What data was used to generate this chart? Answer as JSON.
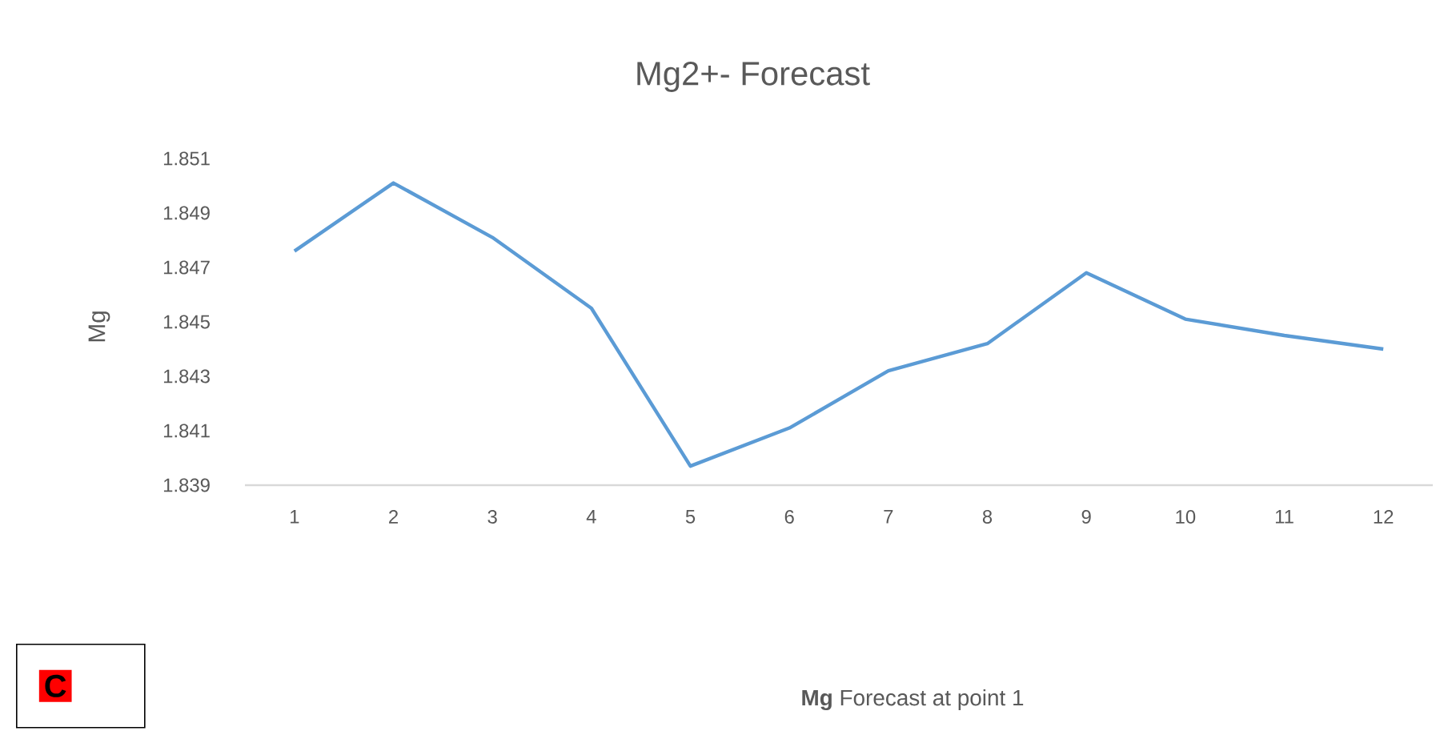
{
  "chart_data": {
    "type": "line",
    "title": "Mg2+- Forecast",
    "ylabel": "Mg",
    "categories": [
      "1",
      "2",
      "3",
      "4",
      "5",
      "6",
      "7",
      "8",
      "9",
      "10",
      "11",
      "12"
    ],
    "series": [
      {
        "color": "#5b9bd5",
        "values": [
          1.8476,
          1.8501,
          1.8481,
          1.8455,
          1.8397,
          1.8411,
          1.8432,
          1.8442,
          1.8468,
          1.8451,
          1.8445,
          1.844
        ]
      }
    ],
    "ylim": [
      1.839,
      1.851
    ],
    "yticks": [
      1.839,
      1.841,
      1.843,
      1.845,
      1.847,
      1.849,
      1.851
    ],
    "grid": false,
    "annotations": [
      "C",
      "**Mg** Forecast at point 1"
    ]
  }
}
